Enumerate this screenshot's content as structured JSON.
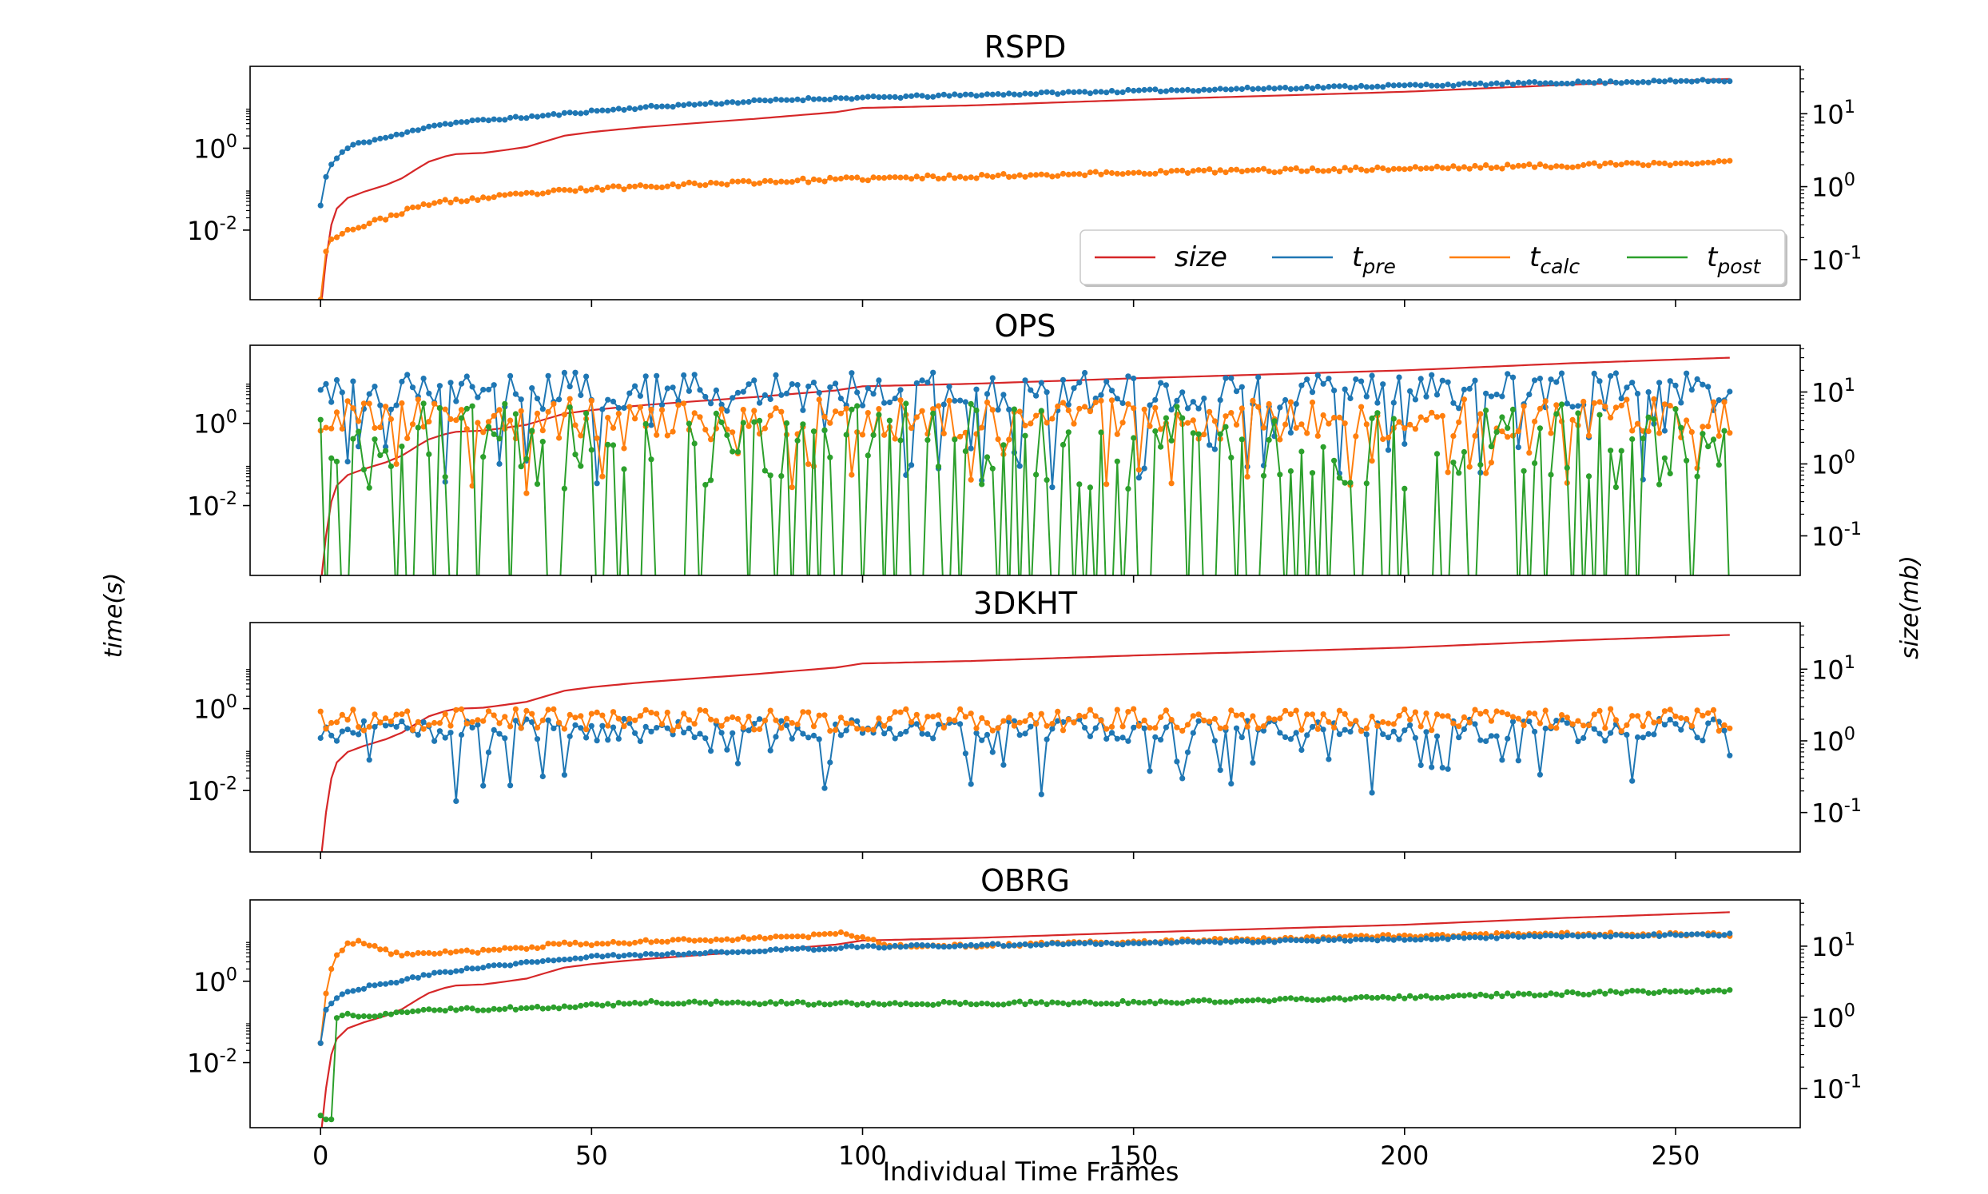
{
  "figure": {
    "ylabel_left": "time(s)",
    "ylabel_right": "size(mb)",
    "xlabel": "Individual Time Frames"
  },
  "legend": {
    "entries": [
      {
        "key": "size",
        "base": "size",
        "sub": "",
        "color": "#d62728"
      },
      {
        "key": "t_pre",
        "base": "t",
        "sub": "pre",
        "color": "#1f77b4"
      },
      {
        "key": "t_calc",
        "base": "t",
        "sub": "calc",
        "color": "#ff7f0e"
      },
      {
        "key": "t_post",
        "base": "t",
        "sub": "post",
        "color": "#2ca02c"
      }
    ],
    "placement": "lower-right of first panel"
  },
  "colors": {
    "size": "#d62728",
    "t_pre": "#1f77b4",
    "t_calc": "#ff7f0e",
    "t_post": "#2ca02c"
  },
  "chart_data": [
    {
      "title": "RSPD",
      "type": "line",
      "xlim": [
        -13,
        273
      ],
      "xticks": [
        0,
        50,
        100,
        150,
        200,
        250
      ],
      "ylim_left_log10": [
        -3.7,
        2.0
      ],
      "yticks_left": [
        "10^0",
        "10^-2"
      ],
      "ylim_right_log10": [
        -1.55,
        1.65
      ],
      "yticks_right": [
        "10^1",
        "10^0",
        "10^-1"
      ],
      "size_curve": [
        [
          0,
          0.02
        ],
        [
          1,
          0.1
        ],
        [
          2,
          0.3
        ],
        [
          3,
          0.5
        ],
        [
          5,
          0.7
        ],
        [
          8,
          0.85
        ],
        [
          12,
          1.05
        ],
        [
          15,
          1.3
        ],
        [
          18,
          1.8
        ],
        [
          20,
          2.2
        ],
        [
          23,
          2.6
        ],
        [
          25,
          2.8
        ],
        [
          30,
          2.9
        ],
        [
          33,
          3.1
        ],
        [
          38,
          3.5
        ],
        [
          42,
          4.3
        ],
        [
          45,
          5.0
        ],
        [
          50,
          5.6
        ],
        [
          55,
          6.1
        ],
        [
          60,
          6.6
        ],
        [
          70,
          7.5
        ],
        [
          80,
          8.5
        ],
        [
          95,
          10.5
        ],
        [
          100,
          12
        ],
        [
          120,
          13
        ],
        [
          150,
          15.5
        ],
        [
          200,
          20
        ],
        [
          230,
          25
        ],
        [
          260,
          30
        ]
      ],
      "series": [
        {
          "key": "t_pre",
          "points": [
            [
              0,
              0.04
            ],
            [
              1,
              0.2
            ],
            [
              2,
              0.4
            ],
            [
              4,
              0.8
            ],
            [
              6,
              1.2
            ],
            [
              10,
              1.6
            ],
            [
              15,
              2.2
            ],
            [
              20,
              3.5
            ],
            [
              25,
              4.2
            ],
            [
              30,
              4.8
            ],
            [
              40,
              6.0
            ],
            [
              50,
              8.0
            ],
            [
              60,
              10
            ],
            [
              70,
              12
            ],
            [
              80,
              14
            ],
            [
              90,
              16
            ],
            [
              100,
              17
            ],
            [
              120,
              20
            ],
            [
              150,
              25
            ],
            [
              180,
              30
            ],
            [
              200,
              34
            ],
            [
              230,
              40
            ],
            [
              260,
              45
            ]
          ],
          "noise": 0.03,
          "seed": 11
        },
        {
          "key": "t_calc",
          "points": [
            [
              0.7,
              0.0002
            ],
            [
              1,
              0.003
            ],
            [
              2,
              0.006
            ],
            [
              4,
              0.009
            ],
            [
              8,
              0.013
            ],
            [
              12,
              0.02
            ],
            [
              16,
              0.03
            ],
            [
              20,
              0.045
            ],
            [
              30,
              0.06
            ],
            [
              40,
              0.08
            ],
            [
              50,
              0.1
            ],
            [
              60,
              0.12
            ],
            [
              80,
              0.15
            ],
            [
              100,
              0.18
            ],
            [
              130,
              0.22
            ],
            [
              160,
              0.27
            ],
            [
              200,
              0.32
            ],
            [
              230,
              0.38
            ],
            [
              260,
              0.45
            ]
          ],
          "noise": 0.05,
          "seed": 23
        }
      ]
    },
    {
      "title": "OPS",
      "type": "line",
      "xlim": [
        -13,
        273
      ],
      "xticks": [
        0,
        50,
        100,
        150,
        200,
        250
      ],
      "ylim_left_log10": [
        -3.7,
        1.9
      ],
      "yticks_left": [
        "10^0",
        "10^-2"
      ],
      "ylim_right_log10": [
        -1.55,
        1.65
      ],
      "yticks_right": [
        "10^1",
        "10^0",
        "10^-1"
      ],
      "size_curve": [
        [
          0,
          0.02
        ],
        [
          1,
          0.1
        ],
        [
          2,
          0.3
        ],
        [
          3,
          0.5
        ],
        [
          5,
          0.7
        ],
        [
          8,
          0.85
        ],
        [
          12,
          1.05
        ],
        [
          15,
          1.3
        ],
        [
          18,
          1.8
        ],
        [
          20,
          2.2
        ],
        [
          23,
          2.6
        ],
        [
          25,
          2.8
        ],
        [
          30,
          2.9
        ],
        [
          33,
          3.1
        ],
        [
          38,
          3.5
        ],
        [
          42,
          4.3
        ],
        [
          45,
          5.0
        ],
        [
          50,
          5.6
        ],
        [
          55,
          6.1
        ],
        [
          60,
          6.6
        ],
        [
          70,
          7.5
        ],
        [
          80,
          8.5
        ],
        [
          95,
          10.5
        ],
        [
          100,
          12
        ],
        [
          120,
          13
        ],
        [
          150,
          15.5
        ],
        [
          200,
          20
        ],
        [
          230,
          25
        ],
        [
          260,
          30
        ]
      ],
      "series": [
        {
          "key": "t_pre",
          "random": {
            "lo_log10": 0.3,
            "hi_log10": 1.25,
            "dip_prob": 0.1,
            "dip_lo": -1.6,
            "dip_hi": 0.0,
            "seed": 101
          }
        },
        {
          "key": "t_calc",
          "random": {
            "lo_log10": -0.4,
            "hi_log10": 0.6,
            "dip_prob": 0.08,
            "dip_lo": -1.8,
            "dip_hi": -0.6,
            "seed": 202
          }
        },
        {
          "key": "t_post",
          "random": {
            "lo_log10": -1.6,
            "hi_log10": 0.5,
            "drop_prob": 0.38,
            "seed": 303
          }
        }
      ]
    },
    {
      "title": "3DKHT",
      "type": "line",
      "xlim": [
        -13,
        273
      ],
      "xticks": [
        0,
        50,
        100,
        150,
        200,
        250
      ],
      "ylim_left_log10": [
        -3.5,
        2.1
      ],
      "yticks_left": [
        "10^0",
        "10^-2"
      ],
      "ylim_right_log10": [
        -1.55,
        1.65
      ],
      "yticks_right": [
        "10^1",
        "10^0",
        "10^-1"
      ],
      "size_curve": [
        [
          0,
          0.02
        ],
        [
          1,
          0.1
        ],
        [
          2,
          0.3
        ],
        [
          3,
          0.5
        ],
        [
          5,
          0.7
        ],
        [
          8,
          0.85
        ],
        [
          12,
          1.05
        ],
        [
          15,
          1.3
        ],
        [
          18,
          1.8
        ],
        [
          20,
          2.2
        ],
        [
          23,
          2.6
        ],
        [
          25,
          2.8
        ],
        [
          30,
          2.9
        ],
        [
          33,
          3.1
        ],
        [
          38,
          3.5
        ],
        [
          42,
          4.3
        ],
        [
          45,
          5.0
        ],
        [
          50,
          5.6
        ],
        [
          55,
          6.1
        ],
        [
          60,
          6.6
        ],
        [
          70,
          7.5
        ],
        [
          80,
          8.5
        ],
        [
          95,
          10.5
        ],
        [
          100,
          12
        ],
        [
          120,
          13
        ],
        [
          150,
          15.5
        ],
        [
          200,
          20
        ],
        [
          230,
          25
        ],
        [
          260,
          30
        ]
      ],
      "series": [
        {
          "key": "t_pre",
          "random": {
            "lo_log10": -0.8,
            "hi_log10": -0.25,
            "dip_prob": 0.14,
            "dip_lo": -2.3,
            "dip_hi": -1.0,
            "seed": 404
          }
        },
        {
          "key": "t_calc",
          "random": {
            "lo_log10": -0.55,
            "hi_log10": 0.0,
            "dip_prob": 0.0,
            "dip_lo": 0,
            "dip_hi": 0,
            "seed": 505
          }
        }
      ]
    },
    {
      "title": "OBRG",
      "type": "line",
      "xlim": [
        -13,
        273
      ],
      "xticks": [
        0,
        50,
        100,
        150,
        200,
        250
      ],
      "ylim_left_log10": [
        -3.6,
        2.0
      ],
      "yticks_left": [
        "10^0",
        "10^-2"
      ],
      "ylim_right_log10": [
        -1.55,
        1.65
      ],
      "yticks_right": [
        "10^1",
        "10^0",
        "10^-1"
      ],
      "size_curve": [
        [
          0,
          0.02
        ],
        [
          1,
          0.1
        ],
        [
          2,
          0.3
        ],
        [
          3,
          0.5
        ],
        [
          5,
          0.7
        ],
        [
          8,
          0.85
        ],
        [
          12,
          1.05
        ],
        [
          15,
          1.3
        ],
        [
          18,
          1.8
        ],
        [
          20,
          2.2
        ],
        [
          23,
          2.6
        ],
        [
          25,
          2.8
        ],
        [
          30,
          2.9
        ],
        [
          33,
          3.1
        ],
        [
          38,
          3.5
        ],
        [
          42,
          4.3
        ],
        [
          45,
          5.0
        ],
        [
          50,
          5.6
        ],
        [
          55,
          6.1
        ],
        [
          60,
          6.6
        ],
        [
          70,
          7.5
        ],
        [
          80,
          8.5
        ],
        [
          95,
          10.5
        ],
        [
          100,
          12
        ],
        [
          120,
          13
        ],
        [
          150,
          15.5
        ],
        [
          200,
          20
        ],
        [
          230,
          25
        ],
        [
          260,
          30
        ]
      ],
      "series": [
        {
          "key": "t_calc",
          "points": [
            [
              0,
              0.03
            ],
            [
              1,
              0.5
            ],
            [
              2,
              2.0
            ],
            [
              3,
              4.0
            ],
            [
              5,
              8.0
            ],
            [
              7,
              10
            ],
            [
              10,
              7.0
            ],
            [
              13,
              5.0
            ],
            [
              15,
              4.5
            ],
            [
              20,
              5.0
            ],
            [
              30,
              5.5
            ],
            [
              40,
              7.0
            ],
            [
              45,
              9.0
            ],
            [
              50,
              8.0
            ],
            [
              60,
              9.5
            ],
            [
              70,
              10.5
            ],
            [
              80,
              11.5
            ],
            [
              90,
              13
            ],
            [
              97,
              15
            ],
            [
              100,
              12
            ],
            [
              104,
              8.0
            ],
            [
              110,
              7.0
            ],
            [
              130,
              8.0
            ],
            [
              160,
              10
            ],
            [
              200,
              13
            ],
            [
              230,
              15
            ],
            [
              260,
              14
            ]
          ],
          "noise": 0.04,
          "seed": 606
        },
        {
          "key": "t_pre",
          "points": [
            [
              0,
              0.03
            ],
            [
              1,
              0.2
            ],
            [
              3,
              0.4
            ],
            [
              6,
              0.6
            ],
            [
              10,
              0.8
            ],
            [
              15,
              1.0
            ],
            [
              20,
              1.5
            ],
            [
              30,
              2.2
            ],
            [
              40,
              3.0
            ],
            [
              50,
              4.0
            ],
            [
              60,
              4.5
            ],
            [
              80,
              5.5
            ],
            [
              100,
              7.0
            ],
            [
              130,
              8.0
            ],
            [
              160,
              9.0
            ],
            [
              200,
              11
            ],
            [
              230,
              13
            ],
            [
              260,
              14
            ]
          ],
          "noise": 0.03,
          "seed": 707
        },
        {
          "key": "t_post",
          "points": [
            [
              0,
              0.0005
            ],
            [
              1,
              0.0004
            ],
            [
              2,
              0.0004
            ],
            [
              3,
              0.12
            ],
            [
              5,
              0.15
            ],
            [
              10,
              0.14
            ],
            [
              20,
              0.2
            ],
            [
              40,
              0.22
            ],
            [
              60,
              0.3
            ],
            [
              100,
              0.28
            ],
            [
              150,
              0.3
            ],
            [
              200,
              0.4
            ],
            [
              230,
              0.5
            ],
            [
              260,
              0.6
            ]
          ],
          "noise": 0.04,
          "seed": 808
        }
      ]
    }
  ]
}
